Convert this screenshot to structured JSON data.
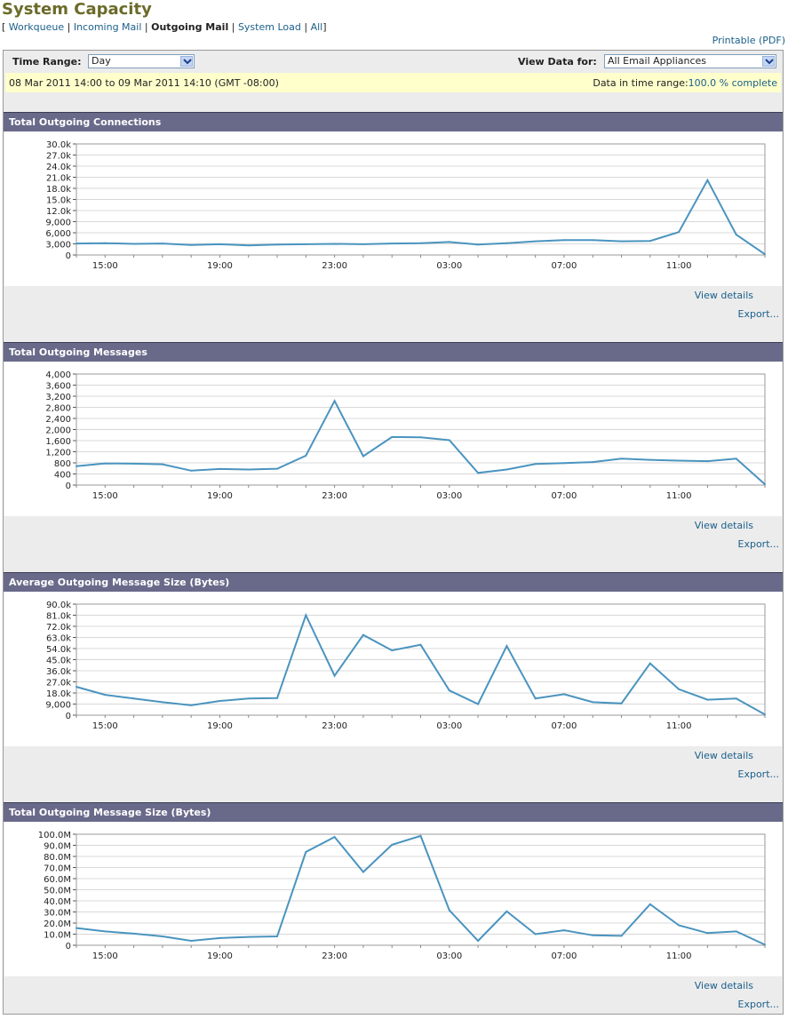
{
  "page": {
    "title": "System Capacity",
    "subnav": {
      "open": "[",
      "close": "]",
      "separator": "|",
      "items": [
        {
          "label": "Workqueue",
          "current": false
        },
        {
          "label": "Incoming Mail",
          "current": false
        },
        {
          "label": "Outgoing Mail",
          "current": true
        },
        {
          "label": "System Load",
          "current": false
        },
        {
          "label": "All",
          "current": false
        }
      ]
    },
    "printable": "Printable (PDF)"
  },
  "filters": {
    "time_range_label": "Time Range:",
    "time_range_value": "Day",
    "view_data_label": "View Data for:",
    "view_data_value": "All Email Appliances",
    "date_range": "08 Mar 2011 14:00 to 09 Mar 2011 14:10 (GMT -08:00)",
    "completeness_label": "Data in time range:",
    "completeness_value": "100.0 % complete"
  },
  "panels": [
    {
      "title": "Total Outgoing Connections",
      "view_details": "View details",
      "export": "Export..."
    },
    {
      "title": "Total Outgoing Messages",
      "view_details": "View details",
      "export": "Export..."
    },
    {
      "title": "Average Outgoing Message Size (Bytes)",
      "view_details": "View details",
      "export": "Export..."
    },
    {
      "title": "Total Outgoing Message Size (Bytes)",
      "view_details": "View details",
      "export": "Export..."
    }
  ],
  "colors": {
    "line": "#4a94bf",
    "header": "#696a8a",
    "highlight": "#ffffcc"
  },
  "chart_data": [
    {
      "type": "line",
      "title": "Total Outgoing Connections",
      "x_ticks": [
        "15:00",
        "19:00",
        "23:00",
        "03:00",
        "07:00",
        "11:00"
      ],
      "y_ticks": [
        "0",
        "3,000",
        "6,000",
        "9,000",
        "12.0k",
        "15.0k",
        "18.0k",
        "21.0k",
        "24.0k",
        "27.0k",
        "30.0k"
      ],
      "ylim": [
        0,
        30000
      ],
      "x": [
        "14:00",
        "15:00",
        "16:00",
        "17:00",
        "18:00",
        "19:00",
        "20:00",
        "21:00",
        "22:00",
        "23:00",
        "00:00",
        "01:00",
        "02:00",
        "03:00",
        "04:00",
        "05:00",
        "06:00",
        "07:00",
        "08:00",
        "09:00",
        "10:00",
        "11:00",
        "12:00",
        "13:00",
        "14:00"
      ],
      "values": [
        3100,
        3200,
        3000,
        3100,
        2700,
        2900,
        2600,
        2800,
        2900,
        3000,
        2900,
        3100,
        3200,
        3500,
        2800,
        3200,
        3700,
        4000,
        4000,
        3700,
        3800,
        6200,
        20200,
        5500,
        200
      ]
    },
    {
      "type": "line",
      "title": "Total Outgoing Messages",
      "x_ticks": [
        "15:00",
        "19:00",
        "23:00",
        "03:00",
        "07:00",
        "11:00"
      ],
      "y_ticks": [
        "0",
        "400",
        "800",
        "1,200",
        "1,600",
        "2,000",
        "2,400",
        "2,800",
        "3,200",
        "3,600",
        "4,000"
      ],
      "ylim": [
        0,
        4000
      ],
      "x": [
        "14:00",
        "15:00",
        "16:00",
        "17:00",
        "18:00",
        "19:00",
        "20:00",
        "21:00",
        "22:00",
        "23:00",
        "00:00",
        "01:00",
        "02:00",
        "03:00",
        "04:00",
        "05:00",
        "06:00",
        "07:00",
        "08:00",
        "09:00",
        "10:00",
        "11:00",
        "12:00",
        "13:00",
        "14:00"
      ],
      "values": [
        680,
        780,
        770,
        750,
        520,
        580,
        560,
        590,
        1060,
        3030,
        1040,
        1730,
        1720,
        1620,
        440,
        560,
        760,
        790,
        830,
        950,
        910,
        880,
        860,
        950,
        30
      ]
    },
    {
      "type": "line",
      "title": "Average Outgoing Message Size (Bytes)",
      "x_ticks": [
        "15:00",
        "19:00",
        "23:00",
        "03:00",
        "07:00",
        "11:00"
      ],
      "y_ticks": [
        "0",
        "9,000",
        "18.0k",
        "27.0k",
        "36.0k",
        "45.0k",
        "54.0k",
        "63.0k",
        "72.0k",
        "81.0k",
        "90.0k"
      ],
      "ylim": [
        0,
        90000
      ],
      "x": [
        "14:00",
        "15:00",
        "16:00",
        "17:00",
        "18:00",
        "19:00",
        "20:00",
        "21:00",
        "22:00",
        "23:00",
        "00:00",
        "01:00",
        "02:00",
        "03:00",
        "04:00",
        "05:00",
        "06:00",
        "07:00",
        "08:00",
        "09:00",
        "10:00",
        "11:00",
        "12:00",
        "13:00",
        "14:00"
      ],
      "values": [
        23000,
        16500,
        13500,
        10500,
        8000,
        11500,
        13500,
        13800,
        81000,
        32000,
        65000,
        52500,
        57000,
        20000,
        9000,
        56000,
        13500,
        17000,
        10500,
        9500,
        42000,
        21000,
        12500,
        13500,
        500
      ]
    },
    {
      "type": "line",
      "title": "Total Outgoing Message Size (Bytes)",
      "x_ticks": [
        "15:00",
        "19:00",
        "23:00",
        "03:00",
        "07:00",
        "11:00"
      ],
      "y_ticks": [
        "0",
        "10.0M",
        "20.0M",
        "30.0M",
        "40.0M",
        "50.0M",
        "60.0M",
        "70.0M",
        "80.0M",
        "90.0M",
        "100.0M"
      ],
      "ylim": [
        0,
        100000000
      ],
      "x": [
        "14:00",
        "15:00",
        "16:00",
        "17:00",
        "18:00",
        "19:00",
        "20:00",
        "21:00",
        "22:00",
        "23:00",
        "00:00",
        "01:00",
        "02:00",
        "03:00",
        "04:00",
        "05:00",
        "06:00",
        "07:00",
        "08:00",
        "09:00",
        "10:00",
        "11:00",
        "12:00",
        "13:00",
        "14:00"
      ],
      "values": [
        15500000,
        12500000,
        10500000,
        8000000,
        4000000,
        6500000,
        7500000,
        8000000,
        84000000,
        97500000,
        66000000,
        90500000,
        98500000,
        31500000,
        4000000,
        30500000,
        10000000,
        13500000,
        9000000,
        8500000,
        37000000,
        18000000,
        11000000,
        12500000,
        500000
      ]
    }
  ]
}
